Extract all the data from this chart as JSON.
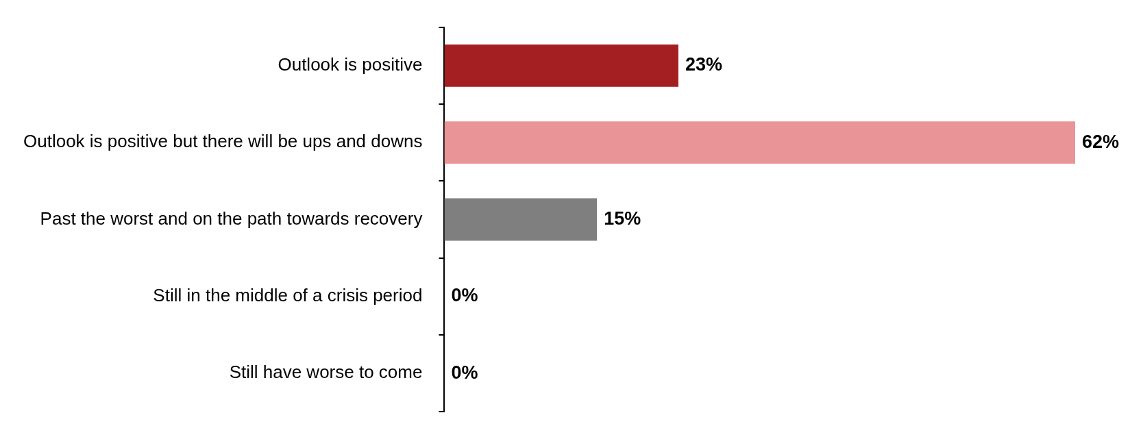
{
  "chart_data": {
    "type": "bar",
    "orientation": "horizontal",
    "categories": [
      "Outlook is positive",
      "Outlook is positive but there will be ups and downs",
      "Past the worst and on the path towards recovery",
      "Still in the middle of a crisis period",
      "Still have worse to come"
    ],
    "values": [
      23,
      62,
      15,
      0,
      0
    ],
    "colors": [
      "#a31f22",
      "#e99496",
      "#7f7f7f",
      "#7f7f7f",
      "#7f7f7f"
    ],
    "value_labels": [
      "23%",
      "62%",
      "15%",
      "0%",
      "0%"
    ],
    "grid": false,
    "legend": false
  }
}
